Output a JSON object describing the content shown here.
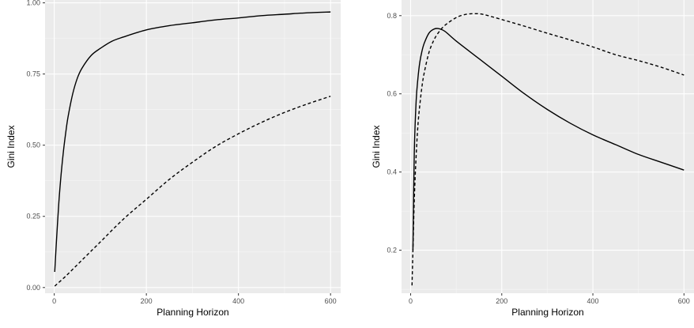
{
  "chart_data": [
    {
      "type": "line",
      "title": "",
      "xlabel": "Planning Horizon",
      "ylabel": "Gini Index",
      "xlim": [
        -20,
        622
      ],
      "ylim": [
        -0.02,
        1.01
      ],
      "x_ticks": [
        0,
        200,
        400,
        600
      ],
      "x_tick_labels": [
        "0",
        "200",
        "400",
        "600"
      ],
      "y_ticks": [
        0,
        0.25,
        0.5,
        0.75,
        1.0
      ],
      "y_tick_labels": [
        "0.00",
        "0.25",
        "0.50",
        "0.75",
        "1.00"
      ],
      "grid": true,
      "legend": "none",
      "series": [
        {
          "linestyle": "solid",
          "color": "#000000",
          "x": [
            1,
            5,
            10,
            15,
            20,
            25,
            30,
            40,
            50,
            60,
            80,
            100,
            125,
            150,
            200,
            250,
            300,
            350,
            400,
            450,
            500,
            550,
            600
          ],
          "y": [
            0.055,
            0.17,
            0.3,
            0.4,
            0.48,
            0.545,
            0.6,
            0.68,
            0.735,
            0.77,
            0.815,
            0.84,
            0.865,
            0.88,
            0.905,
            0.92,
            0.93,
            0.94,
            0.947,
            0.955,
            0.96,
            0.965,
            0.968
          ]
        },
        {
          "linestyle": "dashed",
          "color": "#000000",
          "x": [
            1,
            25,
            50,
            75,
            100,
            150,
            200,
            250,
            300,
            350,
            400,
            450,
            500,
            550,
            600
          ],
          "y": [
            0.005,
            0.04,
            0.08,
            0.12,
            0.16,
            0.24,
            0.31,
            0.38,
            0.44,
            0.495,
            0.54,
            0.58,
            0.615,
            0.645,
            0.672
          ]
        }
      ]
    },
    {
      "type": "line",
      "title": "",
      "xlabel": "Planning Horizon",
      "ylabel": "Gini Index",
      "xlim": [
        -20,
        622
      ],
      "ylim": [
        0.09,
        0.84
      ],
      "x_ticks": [
        0,
        200,
        400,
        600
      ],
      "x_tick_labels": [
        "0",
        "200",
        "400",
        "600"
      ],
      "y_ticks": [
        0.2,
        0.4,
        0.6,
        0.8
      ],
      "y_tick_labels": [
        "0.2",
        "0.4",
        "0.6",
        "0.8"
      ],
      "grid": true,
      "legend": "none",
      "series": [
        {
          "linestyle": "solid",
          "color": "#000000",
          "x": [
            5,
            8,
            12,
            16,
            20,
            25,
            30,
            40,
            50,
            60,
            75,
            100,
            150,
            200,
            250,
            300,
            350,
            400,
            450,
            500,
            550,
            600
          ],
          "y": [
            0.2,
            0.45,
            0.58,
            0.64,
            0.68,
            0.71,
            0.73,
            0.755,
            0.765,
            0.767,
            0.76,
            0.735,
            0.69,
            0.645,
            0.6,
            0.56,
            0.525,
            0.495,
            0.47,
            0.445,
            0.425,
            0.405
          ]
        },
        {
          "linestyle": "dashed",
          "color": "#000000",
          "x": [
            3,
            5,
            8,
            12,
            16,
            20,
            25,
            30,
            40,
            50,
            60,
            75,
            100,
            120,
            140,
            160,
            200,
            250,
            300,
            350,
            400,
            450,
            500,
            550,
            600
          ],
          "y": [
            0.11,
            0.2,
            0.33,
            0.44,
            0.52,
            0.57,
            0.62,
            0.655,
            0.705,
            0.735,
            0.755,
            0.775,
            0.795,
            0.803,
            0.805,
            0.803,
            0.79,
            0.773,
            0.755,
            0.738,
            0.72,
            0.7,
            0.685,
            0.668,
            0.648
          ]
        }
      ]
    }
  ]
}
